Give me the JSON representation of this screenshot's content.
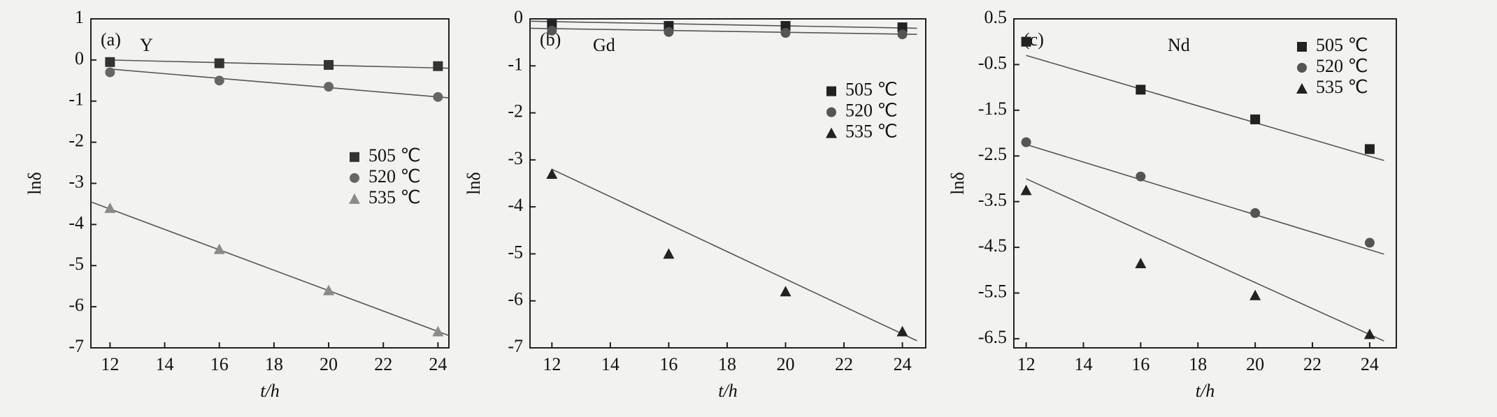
{
  "chart_data": [
    {
      "type": "scatter",
      "panel_label": "(a)",
      "element": "Y",
      "x_label": "t/h",
      "y_label": "lnδ",
      "x": [
        12,
        16,
        20,
        24
      ],
      "xlim": [
        11.3,
        24.4
      ],
      "xticks": [
        12,
        14,
        16,
        18,
        20,
        22,
        24
      ],
      "ylim": [
        -7,
        1
      ],
      "yticks": [
        -7,
        -6,
        -5,
        -4,
        -3,
        -2,
        -1,
        0,
        1
      ],
      "legend": "center right",
      "series": [
        {
          "name": "505 ℃",
          "marker": "square",
          "color": "#333333",
          "values": [
            -0.05,
            -0.08,
            -0.12,
            -0.15
          ],
          "fit": {
            "x": [
              12,
              24.4
            ],
            "y": [
              0.0,
              -0.2
            ]
          }
        },
        {
          "name": "520 ℃",
          "marker": "circle",
          "color": "#666666",
          "values": [
            -0.3,
            -0.5,
            -0.65,
            -0.9
          ],
          "fit": {
            "x": [
              12,
              24.4
            ],
            "y": [
              -0.22,
              -0.92
            ]
          }
        },
        {
          "name": "535 ℃",
          "marker": "triangle",
          "color": "#8a8a8a",
          "values": [
            -3.6,
            -4.6,
            -5.6,
            -6.6
          ],
          "fit": {
            "x": [
              11.3,
              24.4
            ],
            "y": [
              -3.45,
              -6.7
            ]
          }
        }
      ]
    },
    {
      "type": "scatter",
      "panel_label": "(b)",
      "element": "Gd",
      "x_label": "t/h",
      "y_label": "lnδ",
      "x": [
        12,
        16,
        20,
        24
      ],
      "xlim": [
        11.25,
        24.8
      ],
      "xticks": [
        12,
        14,
        16,
        18,
        20,
        22,
        24
      ],
      "ylim": [
        -7,
        0
      ],
      "yticks": [
        -7,
        -6,
        -5,
        -4,
        -3,
        -2,
        -1,
        0
      ],
      "legend": "upper right",
      "series": [
        {
          "name": "505 ℃",
          "marker": "square",
          "color": "#222222",
          "values": [
            -0.12,
            -0.15,
            -0.15,
            -0.18
          ],
          "fit": {
            "x": [
              11.25,
              24.5
            ],
            "y": [
              -0.05,
              -0.2
            ]
          }
        },
        {
          "name": "520 ℃",
          "marker": "circle",
          "color": "#555555",
          "values": [
            -0.25,
            -0.28,
            -0.3,
            -0.33
          ],
          "fit": {
            "x": [
              11.25,
              24.5
            ],
            "y": [
              -0.2,
              -0.33
            ]
          }
        },
        {
          "name": "535 ℃",
          "marker": "triangle",
          "color": "#222222",
          "values": [
            -3.3,
            -5.0,
            -5.8,
            -6.65
          ],
          "fit": {
            "x": [
              12,
              24.5
            ],
            "y": [
              -3.2,
              -6.85
            ]
          }
        }
      ]
    },
    {
      "type": "scatter",
      "panel_label": "(c)",
      "element": "Nd",
      "x_label": "t/h",
      "y_label": "lnδ",
      "x": [
        12,
        16,
        20,
        24
      ],
      "xlim": [
        11.57,
        24.93
      ],
      "xticks": [
        12,
        14,
        16,
        18,
        20,
        22,
        24
      ],
      "ylim": [
        -6.7,
        0.5
      ],
      "yticks": [
        0.5,
        -0.5,
        -1.5,
        -2.5,
        -3.5,
        -4.5,
        -5.5,
        -6.5
      ],
      "legend": "upper right",
      "series": [
        {
          "name": "505 ℃",
          "marker": "square",
          "color": "#222222",
          "values": [
            0.0,
            -1.05,
            -1.7,
            -2.35
          ],
          "fit": {
            "x": [
              12,
              24.5
            ],
            "y": [
              -0.3,
              -2.6
            ]
          }
        },
        {
          "name": "520 ℃",
          "marker": "circle",
          "color": "#555555",
          "values": [
            -2.2,
            -2.95,
            -3.75,
            -4.4
          ],
          "fit": {
            "x": [
              12,
              24.5
            ],
            "y": [
              -2.25,
              -4.65
            ]
          }
        },
        {
          "name": "535 ℃",
          "marker": "triangle",
          "color": "#222222",
          "values": [
            -3.25,
            -4.85,
            -5.55,
            -6.4
          ],
          "fit": {
            "x": [
              12,
              24.5
            ],
            "y": [
              -3.0,
              -6.55
            ]
          }
        }
      ]
    }
  ]
}
